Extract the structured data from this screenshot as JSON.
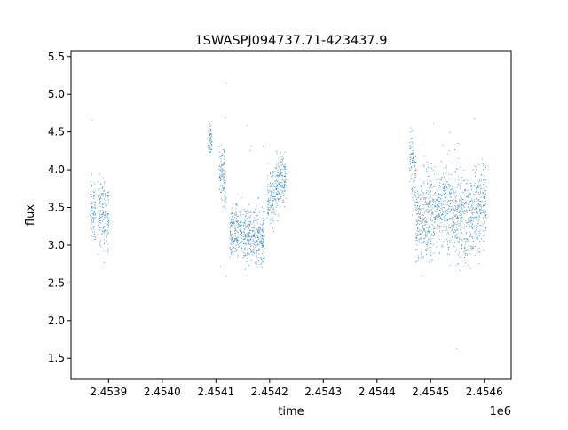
{
  "chart_data": {
    "type": "scatter",
    "title": "1SWASPJ094737.71-423437.9",
    "xlabel": "time",
    "ylabel": "flux",
    "x_offset_label": "1e6",
    "xlim": [
      2453830,
      2454650
    ],
    "ylim": [
      1.22,
      5.58
    ],
    "x_ticks": [
      2453900,
      2454000,
      2454100,
      2454200,
      2454300,
      2454400,
      2454500,
      2454600
    ],
    "x_tick_labels": [
      "2.4539",
      "2.4540",
      "2.4541",
      "2.4542",
      "2.4543",
      "2.4544",
      "2.4545",
      "2.4546"
    ],
    "y_ticks": [
      1.5,
      2.0,
      2.5,
      3.0,
      3.5,
      4.0,
      4.5,
      5.0,
      5.5
    ],
    "y_tick_labels": [
      "1.5",
      "2.0",
      "2.5",
      "3.0",
      "3.5",
      "4.0",
      "4.5",
      "5.0",
      "5.5"
    ],
    "grid": false,
    "marker_color": "#1f77b4",
    "series": [
      {
        "segments": [
          {
            "x": [
              2453865,
              2453875
            ],
            "y_center": [
              3.45,
              3.45
            ],
            "y_spread": 0.28
          },
          {
            "x": [
              2453880,
              2453900
            ],
            "y_center": [
              3.4,
              3.4
            ],
            "y_spread": 0.3
          },
          {
            "x": [
              2454085,
              2454092
            ],
            "y_center": [
              4.4,
              4.4
            ],
            "y_spread": 0.15
          },
          {
            "x": [
              2454105,
              2454118
            ],
            "y_center": [
              3.9,
              3.9
            ],
            "y_spread": 0.25
          },
          {
            "x": [
              2454125,
              2454148
            ],
            "y_center": [
              3.2,
              3.2
            ],
            "y_spread": 0.25
          },
          {
            "x": [
              2454150,
              2454190
            ],
            "y_center": [
              3.1,
              3.15
            ],
            "y_spread": 0.25
          },
          {
            "x": [
              2454195,
              2454230
            ],
            "y_center": [
              3.55,
              3.95
            ],
            "y_spread": 0.25
          },
          {
            "x": [
              2454460,
              2454472
            ],
            "y_center": [
              4.2,
              3.9
            ],
            "y_spread": 0.3
          },
          {
            "x": [
              2454472,
              2454530
            ],
            "y_center": [
              3.3,
              3.6
            ],
            "y_spread": 0.4
          },
          {
            "x": [
              2454530,
              2454570
            ],
            "y_center": [
              3.5,
              3.3
            ],
            "y_spread": 0.4
          },
          {
            "x": [
              2454570,
              2454603
            ],
            "y_center": [
              3.4,
              3.6
            ],
            "y_spread": 0.4
          }
        ]
      }
    ]
  }
}
